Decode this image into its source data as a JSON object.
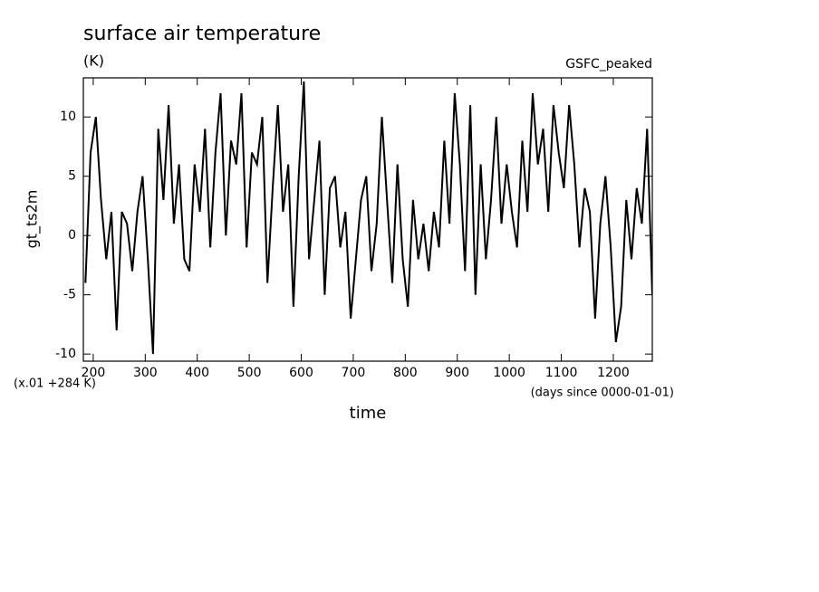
{
  "chart_data": {
    "type": "line",
    "title": "surface air temperature",
    "subtitle": "(K)",
    "annotation_right": "GSFC_peaked",
    "y_label": "gt_ts2m",
    "x_label": "time",
    "x_units": "(days since 0000-01-01)",
    "y_units": "(x.01 +284 K)",
    "xlim": [
      181,
      1275
    ],
    "ylim": [
      -10.6,
      13.3
    ],
    "xticks": [
      200,
      300,
      400,
      500,
      600,
      700,
      800,
      900,
      1000,
      1100,
      1200
    ],
    "yticks": [
      -10,
      -5,
      0,
      5,
      10
    ],
    "color": "#000000",
    "x": [
      185,
      195,
      205,
      215,
      225,
      235,
      245,
      255,
      265,
      275,
      285,
      295,
      305,
      315,
      325,
      335,
      345,
      355,
      365,
      375,
      385,
      395,
      405,
      415,
      425,
      435,
      445,
      455,
      465,
      475,
      485,
      495,
      505,
      515,
      525,
      535,
      545,
      555,
      565,
      575,
      585,
      595,
      605,
      615,
      625,
      635,
      645,
      655,
      665,
      675,
      685,
      695,
      705,
      715,
      725,
      735,
      745,
      755,
      765,
      775,
      785,
      795,
      805,
      815,
      825,
      835,
      845,
      855,
      865,
      875,
      885,
      895,
      905,
      915,
      925,
      935,
      945,
      955,
      965,
      975,
      985,
      995,
      1005,
      1015,
      1025,
      1035,
      1045,
      1055,
      1065,
      1075,
      1085,
      1095,
      1105,
      1115,
      1125,
      1135,
      1145,
      1155,
      1165,
      1175,
      1185,
      1195,
      1205,
      1215,
      1225,
      1235,
      1245,
      1255,
      1265,
      1275
    ],
    "values": [
      -4,
      7,
      10,
      3,
      -2,
      2,
      -8,
      2,
      1,
      -3,
      2,
      5,
      -2,
      -10,
      9,
      3,
      11,
      1,
      6,
      -2,
      -3,
      6,
      2,
      9,
      -1,
      7,
      12,
      0,
      8,
      6,
      12,
      -1,
      7,
      6,
      10,
      -4,
      4,
      11,
      2,
      6,
      -6,
      5,
      13,
      -2,
      3,
      8,
      -5,
      4,
      5,
      -1,
      2,
      -7,
      -2,
      3,
      5,
      -3,
      1,
      10,
      3,
      -4,
      6,
      -2,
      -6,
      3,
      -2,
      1,
      -3,
      2,
      -1,
      8,
      1,
      12,
      6,
      -3,
      11,
      -5,
      6,
      -2,
      3,
      10,
      1,
      6,
      2,
      -1,
      8,
      2,
      12,
      6,
      9,
      2,
      11,
      7,
      4,
      11,
      6,
      -1,
      4,
      2,
      -7,
      1,
      5,
      -1,
      -9,
      -6,
      3,
      -2,
      4,
      1,
      9,
      -5
    ]
  }
}
